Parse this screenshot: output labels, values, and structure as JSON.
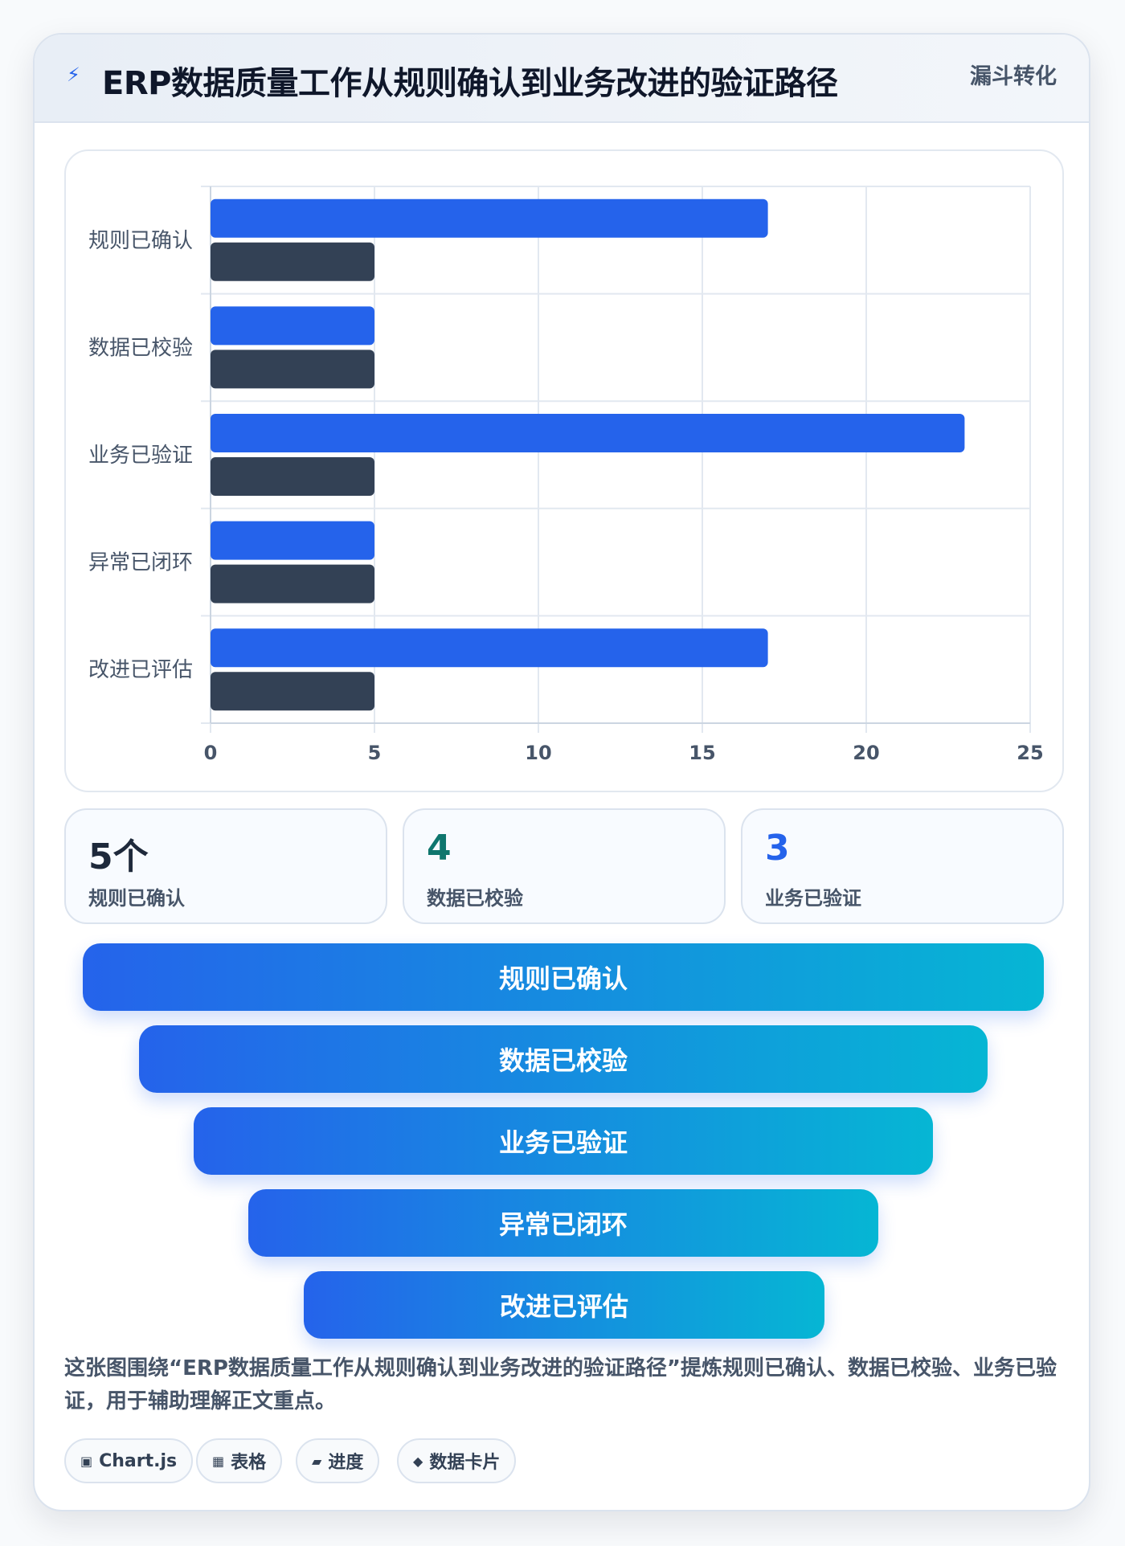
{
  "header": {
    "icon": "bolt-icon",
    "title": "ERP数据质量工作从规则确认到业务改进的验证路径",
    "tag": "漏斗转化"
  },
  "chart_data": {
    "type": "bar",
    "orientation": "horizontal",
    "categories": [
      "规则已确认",
      "数据已校验",
      "业务已验证",
      "异常已闭环",
      "改进已评估"
    ],
    "series": [
      {
        "values": [
          17,
          5,
          23,
          5,
          17
        ],
        "color": "#2563eb"
      },
      {
        "values": [
          5,
          5,
          5,
          5,
          5
        ],
        "color": "#334155"
      }
    ],
    "xlim": [
      0,
      25
    ],
    "xticks": [
      0,
      5,
      10,
      15,
      20,
      25
    ],
    "grid": true
  },
  "kpis": [
    {
      "value": "5个",
      "label": "规则已确认",
      "color": "#1e293b"
    },
    {
      "value": "4",
      "label": "数据已校验",
      "color": "#0f766e"
    },
    {
      "value": "3",
      "label": "业务已验证",
      "color": "#2563eb"
    }
  ],
  "funnel": [
    "规则已确认",
    "数据已校验",
    "业务已验证",
    "异常已闭环",
    "改进已评估"
  ],
  "description": "这张图围绕“ERP数据质量工作从规则确认到业务改进的验证路径”提炼规则已确认、数据已校验、业务已验证，用于辅助理解正文重点。",
  "chips": [
    {
      "icon": "▣",
      "label": "Chart.js"
    },
    {
      "icon": "▦",
      "label": "表格"
    },
    {
      "icon": "▰",
      "label": "进度"
    },
    {
      "icon": "◆",
      "label": "数据卡片"
    }
  ],
  "colors": {
    "accent": "#2563eb",
    "dark": "#334155",
    "gradient_end": "#06b6d4"
  }
}
